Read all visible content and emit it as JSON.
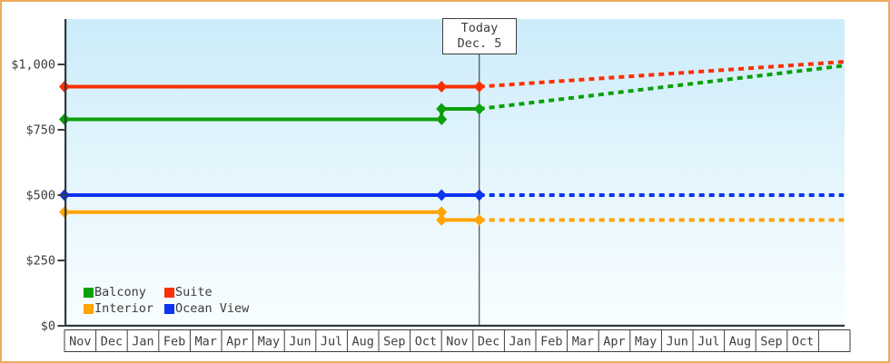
{
  "frame": {
    "border_color": "#edaa5e",
    "background_color": "#ffffff"
  },
  "today_box": {
    "line1": "Today",
    "line2": "Dec. 5"
  },
  "legend": {
    "items": [
      {
        "label": "Balcony",
        "color": "#0aa00a"
      },
      {
        "label": "Suite",
        "color": "#fa3005"
      },
      {
        "label": "Interior",
        "color": "#ffa405"
      },
      {
        "label": "Ocean View",
        "color": "#0a34f0"
      }
    ]
  },
  "chart_data": {
    "type": "line",
    "title": "",
    "xlabel": "",
    "ylabel": "",
    "ylim": [
      0,
      1175
    ],
    "grid": false,
    "legend_position": "bottom-left",
    "x_categories": [
      "Nov",
      "Dec",
      "Jan",
      "Feb",
      "Mar",
      "Apr",
      "May",
      "Jun",
      "Jul",
      "Aug",
      "Sep",
      "Oct",
      "Nov",
      "Dec",
      "Jan",
      "Feb",
      "Mar",
      "Apr",
      "May",
      "Jun",
      "Jul",
      "Aug",
      "Sep",
      "Oct"
    ],
    "yticks": [
      {
        "value": 0,
        "label": "$0"
      },
      {
        "value": 250,
        "label": "$250"
      },
      {
        "value": 500,
        "label": "$500"
      },
      {
        "value": 750,
        "label": "$750"
      },
      {
        "value": 1000,
        "label": "$1,000"
      }
    ],
    "today": {
      "title": "Today",
      "date": "Dec. 5",
      "month_offset": 13.2
    },
    "forecast_style": "dotted",
    "series": [
      {
        "name": "Balcony",
        "color": "#0aa00a",
        "history": [
          [
            0,
            790
          ],
          [
            12,
            790
          ],
          [
            12,
            830
          ],
          [
            13.2,
            830
          ]
        ],
        "forecast": [
          [
            13.2,
            830
          ],
          [
            24.8,
            995
          ]
        ],
        "markers": [
          [
            0,
            790
          ],
          [
            12,
            790
          ],
          [
            12,
            830
          ],
          [
            13.2,
            830
          ]
        ]
      },
      {
        "name": "Suite",
        "color": "#fa3005",
        "history": [
          [
            0,
            915
          ],
          [
            12,
            915
          ],
          [
            13.2,
            915
          ]
        ],
        "forecast": [
          [
            13.2,
            915
          ],
          [
            24.8,
            1010
          ]
        ],
        "markers": [
          [
            0,
            915
          ],
          [
            12,
            915
          ],
          [
            13.2,
            915
          ]
        ]
      },
      {
        "name": "Interior",
        "color": "#ffa405",
        "history": [
          [
            0,
            435
          ],
          [
            12,
            435
          ],
          [
            12,
            405
          ],
          [
            13.2,
            405
          ]
        ],
        "forecast": [
          [
            13.2,
            405
          ],
          [
            24.8,
            405
          ]
        ],
        "markers": [
          [
            0,
            435
          ],
          [
            12,
            435
          ],
          [
            12,
            405
          ],
          [
            13.2,
            405
          ]
        ]
      },
      {
        "name": "Ocean View",
        "color": "#0a34f0",
        "history": [
          [
            0,
            500
          ],
          [
            12,
            500
          ],
          [
            13.2,
            500
          ]
        ],
        "forecast": [
          [
            13.2,
            500
          ],
          [
            24.8,
            500
          ]
        ],
        "markers": [
          [
            0,
            500
          ],
          [
            12,
            500
          ],
          [
            13.2,
            500
          ]
        ]
      }
    ]
  }
}
